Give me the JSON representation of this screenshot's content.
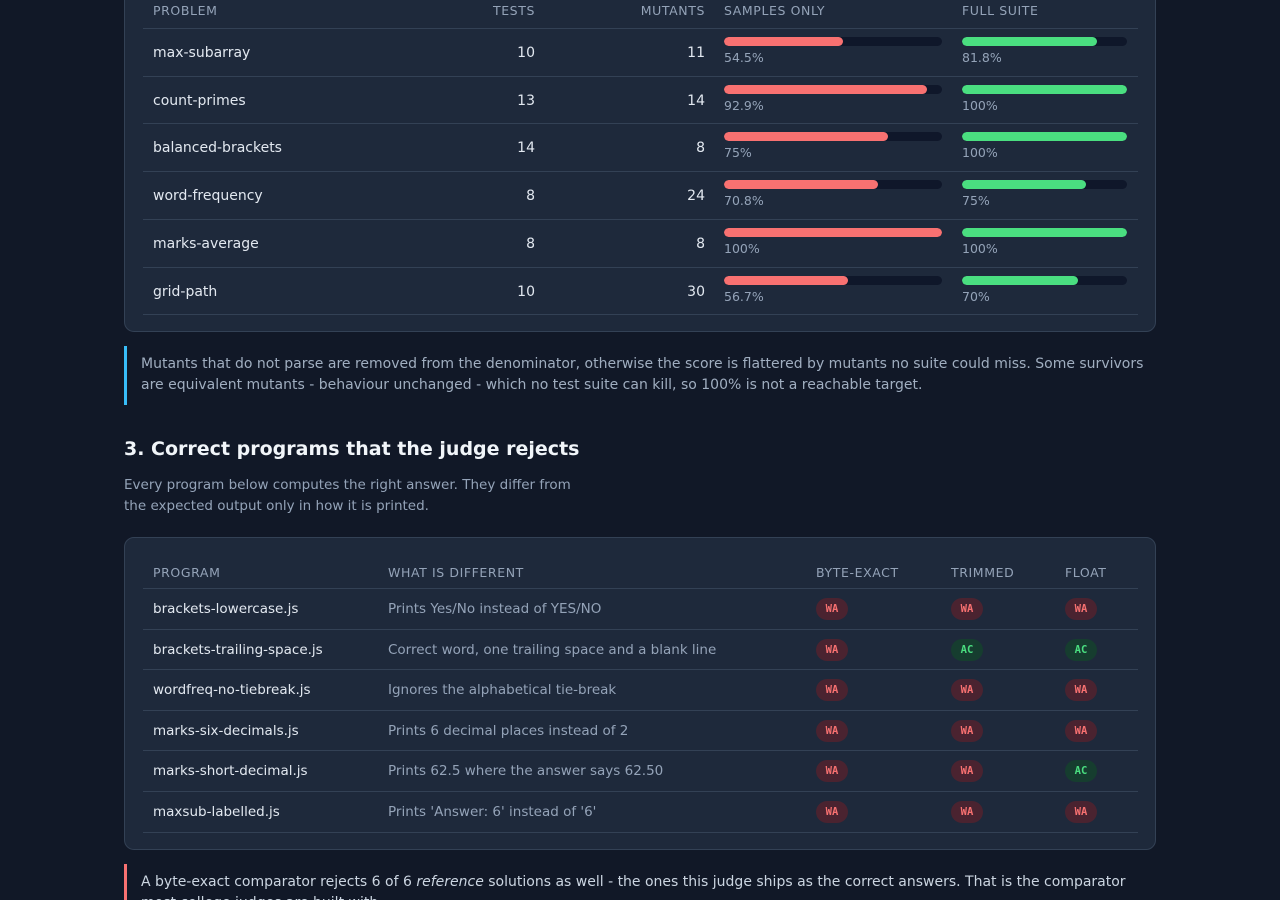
{
  "mutation_table": {
    "headers": {
      "problem": "PROBLEM",
      "tests": "TESTS",
      "mutants": "MUTANTS",
      "samples_only": "SAMPLES ONLY",
      "full_suite": "FULL SUITE"
    },
    "rows": [
      {
        "problem": "max-subarray",
        "tests": "10",
        "mutants": "11",
        "samples": {
          "label": "54.5%",
          "value": 54.5
        },
        "full": {
          "label": "81.8%",
          "value": 81.8
        }
      },
      {
        "problem": "count-primes",
        "tests": "13",
        "mutants": "14",
        "samples": {
          "label": "92.9%",
          "value": 92.9
        },
        "full": {
          "label": "100%",
          "value": 100
        }
      },
      {
        "problem": "balanced-brackets",
        "tests": "14",
        "mutants": "8",
        "samples": {
          "label": "75%",
          "value": 75
        },
        "full": {
          "label": "100%",
          "value": 100
        }
      },
      {
        "problem": "word-frequency",
        "tests": "8",
        "mutants": "24",
        "samples": {
          "label": "70.8%",
          "value": 70.8
        },
        "full": {
          "label": "75%",
          "value": 75
        }
      },
      {
        "problem": "marks-average",
        "tests": "8",
        "mutants": "8",
        "samples": {
          "label": "100%",
          "value": 100
        },
        "full": {
          "label": "100%",
          "value": 100
        }
      },
      {
        "problem": "grid-path",
        "tests": "10",
        "mutants": "30",
        "samples": {
          "label": "56.7%",
          "value": 56.7
        },
        "full": {
          "label": "70%",
          "value": 70
        }
      }
    ]
  },
  "note1": "Mutants that do not parse are removed from the denominator, otherwise the score is flattered by mutants no suite could miss. Some survivors are equivalent mutants - behaviour unchanged - which no test suite can kill, so 100% is not a reachable target.",
  "section3": {
    "title": "3. Correct programs that the judge rejects",
    "description": "Every program below computes the right answer. They differ from the expected output only in how it is printed."
  },
  "judge_table": {
    "headers": {
      "program": "PROGRAM",
      "difference": "WHAT IS DIFFERENT",
      "byte_exact": "BYTE-EXACT",
      "trimmed": "TRIMMED",
      "float": "FLOAT"
    },
    "rows": [
      {
        "program": "brackets-lowercase.js",
        "difference": "Prints Yes/No instead of YES/NO",
        "byte_exact": "WA",
        "trimmed": "WA",
        "float": "WA"
      },
      {
        "program": "brackets-trailing-space.js",
        "difference": "Correct word, one trailing space and a blank line",
        "byte_exact": "WA",
        "trimmed": "AC",
        "float": "AC"
      },
      {
        "program": "wordfreq-no-tiebreak.js",
        "difference": "Ignores the alphabetical tie-break",
        "byte_exact": "WA",
        "trimmed": "WA",
        "float": "WA"
      },
      {
        "program": "marks-six-decimals.js",
        "difference": "Prints 6 decimal places instead of 2",
        "byte_exact": "WA",
        "trimmed": "WA",
        "float": "WA"
      },
      {
        "program": "marks-short-decimal.js",
        "difference": "Prints 62.5 where the answer says 62.50",
        "byte_exact": "WA",
        "trimmed": "WA",
        "float": "AC"
      },
      {
        "program": "maxsub-labelled.js",
        "difference": "Prints 'Answer: 6' instead of '6'",
        "byte_exact": "WA",
        "trimmed": "WA",
        "float": "WA"
      }
    ]
  },
  "note2": {
    "before": "A byte-exact comparator rejects 6 of 6 ",
    "emphasis": "reference",
    "after": " solutions as well - the ones this judge ships as the correct answers. That is the comparator most college judges are built with."
  },
  "colors": {
    "samples_bar": "#f87171",
    "full_bar": "#4ade80",
    "wa": "#f87171",
    "ac": "#4ade80"
  }
}
